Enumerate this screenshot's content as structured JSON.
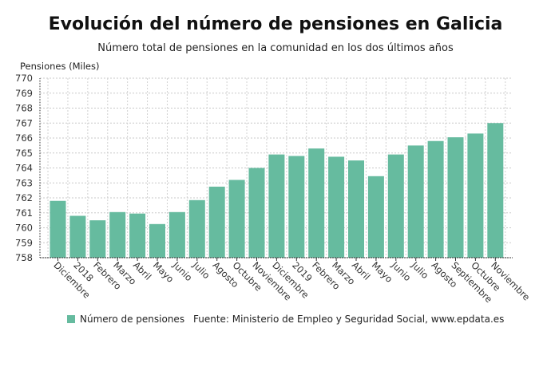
{
  "chart_data": {
    "type": "bar",
    "title": "Evolución del número de pensiones en Galicia",
    "subtitle": "Número total de pensiones en la comunidad en los dos últimos años",
    "ylabel": "Pensiones (Miles)",
    "xlabel": "",
    "ylim": [
      758,
      770
    ],
    "yticks": [
      758,
      759,
      760,
      761,
      762,
      763,
      764,
      765,
      766,
      767,
      768,
      769,
      770
    ],
    "grid": true,
    "legend_position": "bottom-left",
    "categories": [
      "Diciembre",
      "2018",
      "Febrero",
      "Marzo",
      "Abril",
      "Mayo",
      "Junio",
      "Julio",
      "Agosto",
      "Octubre",
      "Noviembre",
      "Diciembre",
      "2019",
      "Febrero",
      "Marzo",
      "Abril",
      "Mayo",
      "Junio",
      "Julio",
      "Agosto",
      "Septiembre",
      "Octubre",
      "Noviembre"
    ],
    "series": [
      {
        "name": "Número de pensiones",
        "color": "#66bb9f",
        "values": [
          761.8,
          760.8,
          760.5,
          761.05,
          760.95,
          760.25,
          761.05,
          761.85,
          762.75,
          763.2,
          764.0,
          764.9,
          764.8,
          765.3,
          764.75,
          764.5,
          763.45,
          764.9,
          765.5,
          765.8,
          766.05,
          766.3,
          767.0
        ]
      }
    ],
    "source": "Fuente: Ministerio de Empleo y Seguridad Social, www.epdata.es"
  }
}
